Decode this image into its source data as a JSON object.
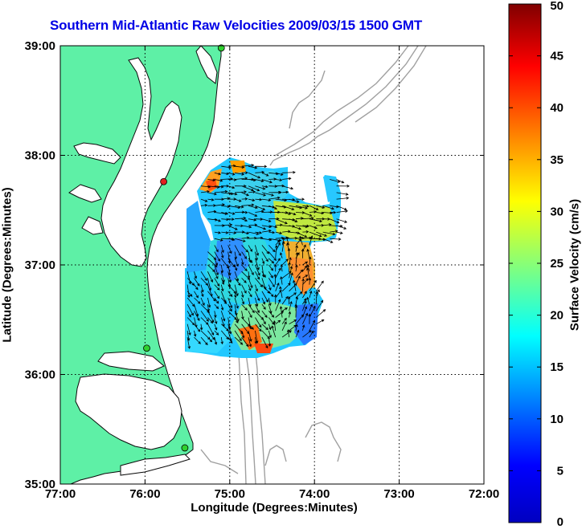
{
  "chart_data": {
    "type": "heatmap",
    "title": "Southern Mid-Atlantic Raw Velocities 2009/03/15 1500 GMT",
    "xlabel": "Longitude (Degrees:Minutes)",
    "ylabel": "Latitude (Degrees:Minutes)",
    "colorbar_label": "Surface Velocity (cm/s)",
    "xlim": [
      -77,
      -72
    ],
    "ylim": [
      35,
      39
    ],
    "x_ticks": [
      {
        "value": -77,
        "label": "77:00"
      },
      {
        "value": -76,
        "label": "76:00"
      },
      {
        "value": -75,
        "label": "75:00"
      },
      {
        "value": -74,
        "label": "74:00"
      },
      {
        "value": -73,
        "label": "73:00"
      },
      {
        "value": -72,
        "label": "72:00"
      }
    ],
    "y_ticks": [
      {
        "value": 35,
        "label": "35:00"
      },
      {
        "value": 36,
        "label": "36:00"
      },
      {
        "value": 37,
        "label": "37:00"
      },
      {
        "value": 38,
        "label": "38:00"
      },
      {
        "value": 39,
        "label": "39:00"
      }
    ],
    "colorbar": {
      "range": [
        0,
        50
      ],
      "ticks": [
        0,
        5,
        10,
        15,
        20,
        25,
        30,
        35,
        40,
        45,
        50
      ]
    },
    "grid": "dotted",
    "colors": {
      "land": "#5ef0a6",
      "coast": "#0a0a0a",
      "bathymetry": "#a0a0a0",
      "title": "#0000e6",
      "station_active": "#2ed02e",
      "station_inactive": "#e02020"
    },
    "stations": [
      {
        "lon": -75.1,
        "lat": 38.98,
        "status": "active"
      },
      {
        "lon": -75.78,
        "lat": 37.76,
        "status": "inactive"
      },
      {
        "lon": -75.98,
        "lat": 36.24,
        "status": "active"
      },
      {
        "lon": -75.53,
        "lat": 35.33,
        "status": "active"
      }
    ],
    "velocity_field": {
      "lon_range": [
        -75.5,
        -73.6
      ],
      "lat_range": [
        36.3,
        37.9
      ],
      "speed_range_cm_s": [
        5,
        40
      ]
    }
  }
}
